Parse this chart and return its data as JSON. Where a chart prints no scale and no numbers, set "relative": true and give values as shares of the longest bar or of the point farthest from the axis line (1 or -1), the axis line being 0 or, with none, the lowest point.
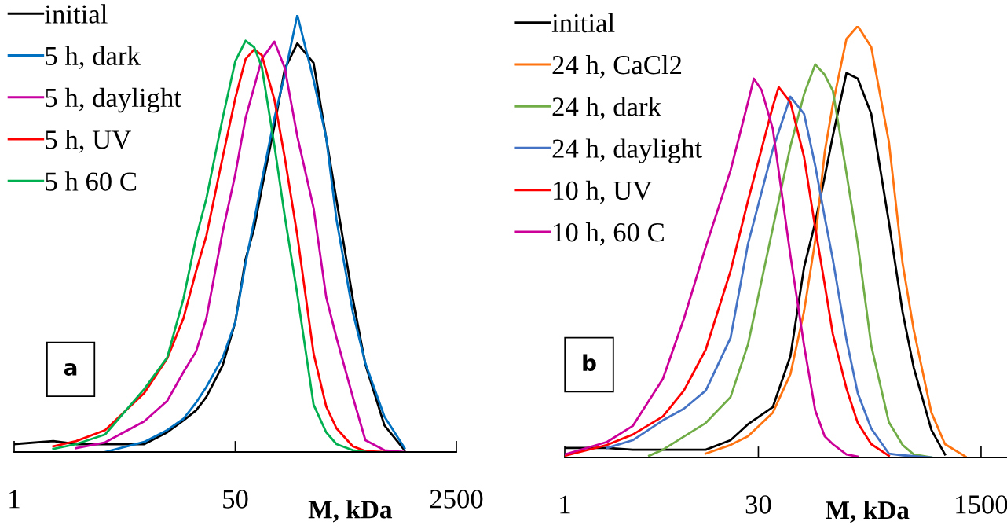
{
  "chart_data": [
    {
      "type": "line",
      "relative": true,
      "xlabel": "M, kDa",
      "log": "x",
      "xlim": [
        1,
        2500
      ],
      "xticks": [
        1,
        50,
        2500
      ],
      "legend": "top left",
      "marker": "none",
      "line_style": "solid",
      "annotations": [
        "a"
      ],
      "series": [
        {
          "name": "initial",
          "color": "#000000",
          "x": [
            1,
            2,
            3,
            5,
            10,
            15,
            20,
            25,
            30,
            40,
            50,
            60,
            70,
            80,
            100,
            120,
            150,
            200,
            250,
            300,
            400,
            500,
            700,
            1000
          ],
          "values": [
            0.018,
            0.025,
            0.018,
            0.018,
            0.018,
            0.045,
            0.072,
            0.095,
            0.126,
            0.198,
            0.297,
            0.441,
            0.513,
            0.603,
            0.746,
            0.876,
            0.935,
            0.89,
            0.718,
            0.576,
            0.351,
            0.2,
            0.061,
            0.004
          ]
        },
        {
          "name": "5 h, dark",
          "color": "#0070c0",
          "x": [
            5,
            10,
            15,
            20,
            25,
            30,
            40,
            50,
            60,
            70,
            80,
            100,
            120,
            150,
            200,
            250,
            300,
            400,
            500,
            700,
            1000
          ],
          "values": [
            0,
            0.023,
            0.05,
            0.076,
            0.113,
            0.149,
            0.216,
            0.297,
            0.432,
            0.531,
            0.621,
            0.764,
            0.863,
            1,
            0.851,
            0.719,
            0.531,
            0.32,
            0.203,
            0.081,
            0.009
          ]
        },
        {
          "name": "5 h, daylight",
          "color": "#c800a1",
          "x": [
            3,
            5,
            10,
            15,
            20,
            25,
            30,
            40,
            50,
            60,
            70,
            80,
            100,
            120,
            150,
            200,
            250,
            300,
            400,
            500,
            700,
            1000
          ],
          "values": [
            0.009,
            0.022,
            0.07,
            0.117,
            0.183,
            0.23,
            0.306,
            0.504,
            0.635,
            0.764,
            0.836,
            0.899,
            0.939,
            0.879,
            0.722,
            0.558,
            0.354,
            0.261,
            0.126,
            0.027,
            0.004,
            0
          ]
        },
        {
          "name": "5 h, UV",
          "color": "#ff0000",
          "x": [
            2,
            3,
            5,
            10,
            15,
            20,
            25,
            30,
            40,
            50,
            60,
            70,
            80,
            100,
            120,
            150,
            200,
            250,
            300,
            400,
            500,
            700
          ],
          "values": [
            0.013,
            0.025,
            0.05,
            0.135,
            0.214,
            0.306,
            0.414,
            0.495,
            0.674,
            0.809,
            0.899,
            0.921,
            0.908,
            0.806,
            0.674,
            0.495,
            0.225,
            0.104,
            0.054,
            0.013,
            0.002,
            0
          ]
        },
        {
          "name": "5 h 60 C",
          "color": "#00b050",
          "x": [
            2,
            3,
            5,
            10,
            15,
            20,
            25,
            30,
            40,
            50,
            60,
            70,
            80,
            100,
            120,
            150,
            200,
            250,
            300,
            400,
            500
          ],
          "values": [
            0.007,
            0.018,
            0.04,
            0.144,
            0.216,
            0.351,
            0.49,
            0.58,
            0.764,
            0.894,
            0.941,
            0.926,
            0.881,
            0.701,
            0.54,
            0.36,
            0.108,
            0.045,
            0.018,
            0.004,
            0
          ]
        }
      ]
    },
    {
      "type": "line",
      "relative": true,
      "xlabel": "M, kDa",
      "log": "x",
      "xlim": [
        1,
        2400
      ],
      "xticks": [
        1,
        30,
        1500
      ],
      "legend": "top left",
      "marker": "none",
      "line_style": "solid",
      "annotations": [
        "b"
      ],
      "series": [
        {
          "name": "initial",
          "color": "#000000",
          "x": [
            1,
            2.1,
            3.3,
            5.6,
            11.9,
            18.4,
            25,
            38.7,
            52.7,
            67,
            81.5,
            96.2,
            111,
            141,
            172,
            218,
            297,
            378,
            460,
            627,
            796
          ],
          "values": [
            0.022,
            0.022,
            0.018,
            0.018,
            0.018,
            0.04,
            0.077,
            0.117,
            0.235,
            0.441,
            0.545,
            0.65,
            0.745,
            0.891,
            0.878,
            0.796,
            0.546,
            0.337,
            0.208,
            0.064,
            0.007
          ]
        },
        {
          "name": "24 h, CaCl2",
          "color": "#ff7410",
          "x": [
            11.9,
            18.4,
            25,
            38.7,
            52.7,
            67,
            81.5,
            96.2,
            111,
            141,
            172,
            218,
            297,
            378,
            460,
            627,
            796,
            1143
          ],
          "values": [
            0.009,
            0.029,
            0.049,
            0.104,
            0.193,
            0.339,
            0.503,
            0.707,
            0.818,
            0.97,
            1,
            0.951,
            0.732,
            0.45,
            0.295,
            0.104,
            0.031,
            0.002
          ]
        },
        {
          "name": "24 h, dark",
          "color": "#70ad47",
          "x": [
            4.4,
            5.6,
            11.9,
            18.4,
            25,
            38.7,
            52.7,
            67,
            81.5,
            96.2,
            111,
            141,
            172,
            218,
            297,
            378,
            460,
            627
          ],
          "values": [
            0.004,
            0.018,
            0.08,
            0.14,
            0.262,
            0.532,
            0.721,
            0.842,
            0.911,
            0.887,
            0.85,
            0.659,
            0.495,
            0.259,
            0.082,
            0.029,
            0.007,
            0
          ]
        },
        {
          "name": "24 h, daylight",
          "color": "#4472c4",
          "x": [
            2.1,
            3.3,
            5.6,
            8.1,
            11.9,
            18.4,
            25,
            38.7,
            52.7,
            67,
            81.5,
            96.2,
            111,
            141,
            172,
            218,
            297,
            378,
            627
          ],
          "values": [
            0.022,
            0.04,
            0.086,
            0.113,
            0.155,
            0.277,
            0.495,
            0.714,
            0.836,
            0.796,
            0.676,
            0.557,
            0.459,
            0.273,
            0.149,
            0.067,
            0.009,
            0.005,
            0
          ]
        },
        {
          "name": "10 h, UV",
          "color": "#ff0000",
          "x": [
            1,
            2.1,
            3.3,
            5.6,
            8.1,
            11.9,
            18.4,
            25,
            38.7,
            42.9,
            52.7,
            67,
            81.5,
            96.2,
            111,
            141,
            172,
            218,
            297
          ],
          "values": [
            0.004,
            0.029,
            0.053,
            0.095,
            0.155,
            0.25,
            0.432,
            0.595,
            0.814,
            0.858,
            0.823,
            0.696,
            0.532,
            0.401,
            0.286,
            0.16,
            0.08,
            0.031,
            0.004
          ]
        },
        {
          "name": "10 h, 60 C",
          "color": "#cc0099",
          "x": [
            1,
            2.1,
            3.3,
            5.6,
            8.1,
            11.9,
            18.4,
            25,
            27.7,
            31.8,
            38.7,
            52.7,
            67,
            81.5,
            96.2,
            111,
            141,
            172
          ],
          "values": [
            0.007,
            0.036,
            0.073,
            0.182,
            0.321,
            0.488,
            0.665,
            0.823,
            0.878,
            0.851,
            0.761,
            0.468,
            0.259,
            0.109,
            0.049,
            0.031,
            0.007,
            0.002
          ]
        }
      ]
    }
  ]
}
